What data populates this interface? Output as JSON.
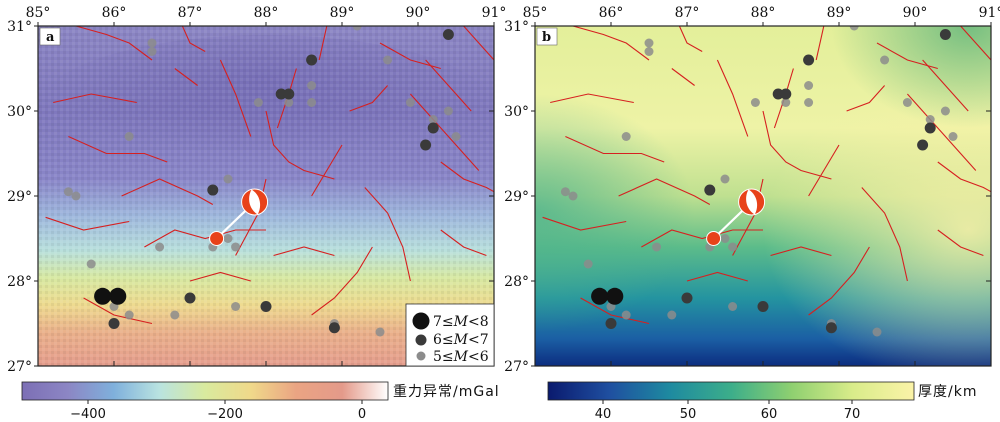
{
  "lon_ticks": [
    "85°",
    "86°",
    "87°",
    "88°",
    "89°",
    "90°",
    "91°"
  ],
  "lat_ticks": [
    "31°",
    "30°",
    "29°",
    "28°",
    "27°"
  ],
  "panel_a": {
    "letter": "a",
    "colorbar_title": "重力异常/mGal",
    "colorbar_ticks": [
      "−400",
      "−200",
      "0"
    ],
    "colormap": [
      "#7c6fb5",
      "#8c86c4",
      "#7fb0dc",
      "#b9e3e0",
      "#d9ea9e",
      "#f0d98a",
      "#eaa483",
      "#e49a8a",
      "#ffffff"
    ]
  },
  "panel_b": {
    "letter": "b",
    "colorbar_title": "厚度/km",
    "colorbar_ticks": [
      "40",
      "50",
      "60",
      "70"
    ],
    "colormap": [
      "#0a1a6e",
      "#1f4fa0",
      "#1e8aa0",
      "#3cae8a",
      "#8fd070",
      "#d9ec8a",
      "#fbf3a8"
    ]
  },
  "legend": {
    "items": [
      {
        "prefix": "7≤",
        "var": "M",
        "suffix": "<8",
        "color": "#111111"
      },
      {
        "prefix": "6≤",
        "var": "M",
        "suffix": "<7",
        "color": "#3a3a3a"
      },
      {
        "prefix": "5≤",
        "var": "M",
        "suffix": "<6",
        "color": "#8c8c8c"
      }
    ]
  },
  "colors": {
    "fault": "#d62020",
    "beachball": "#e8421a",
    "link": "#ffffff"
  },
  "map_extent": {
    "lon": [
      85,
      91
    ],
    "lat": [
      27,
      31
    ]
  },
  "events_large": [
    [
      86.05,
      27.82
    ],
    [
      85.85,
      27.82
    ]
  ],
  "events_medium": [
    [
      87.3,
      29.07
    ],
    [
      88.2,
      30.2
    ],
    [
      88.3,
      30.2
    ],
    [
      88.6,
      30.6
    ],
    [
      90.1,
      29.6
    ],
    [
      90.2,
      29.8
    ],
    [
      90.4,
      30.9
    ],
    [
      87.0,
      27.8
    ],
    [
      88.0,
      27.7
    ],
    [
      88.9,
      27.45
    ],
    [
      86.0,
      27.5
    ]
  ],
  "events_small": [
    [
      85.5,
      29.0
    ],
    [
      85.4,
      29.05
    ],
    [
      85.7,
      28.2
    ],
    [
      86.2,
      29.7
    ],
    [
      86.5,
      30.8
    ],
    [
      86.5,
      30.7
    ],
    [
      87.9,
      30.1
    ],
    [
      88.3,
      30.1
    ],
    [
      88.6,
      30.1
    ],
    [
      88.6,
      30.3
    ],
    [
      87.5,
      29.2
    ],
    [
      87.5,
      28.5
    ],
    [
      87.6,
      28.4
    ],
    [
      87.3,
      28.4
    ],
    [
      86.6,
      28.4
    ],
    [
      87.6,
      27.7
    ],
    [
      88.9,
      27.5
    ],
    [
      86.2,
      27.6
    ],
    [
      86.8,
      27.6
    ],
    [
      89.6,
      30.6
    ],
    [
      89.9,
      30.1
    ],
    [
      90.2,
      29.9
    ],
    [
      90.4,
      30.0
    ],
    [
      90.5,
      29.7
    ],
    [
      89.5,
      27.4
    ],
    [
      86.0,
      27.7
    ],
    [
      89.2,
      31.0
    ]
  ],
  "mechanism_pairs": [
    {
      "event": [
        87.35,
        28.5
      ],
      "ball": [
        87.85,
        28.93
      ]
    }
  ],
  "faults": [
    [
      [
        85.4,
        29.7
      ],
      [
        85.9,
        29.5
      ],
      [
        86.4,
        29.5
      ],
      [
        86.7,
        29.4
      ]
    ],
    [
      [
        86.5,
        30.6
      ],
      [
        86.2,
        30.8
      ],
      [
        85.9,
        30.9
      ],
      [
        85.5,
        31.0
      ]
    ],
    [
      [
        85.1,
        28.75
      ],
      [
        85.6,
        28.6
      ],
      [
        86.2,
        28.7
      ]
    ],
    [
      [
        86.1,
        29.0
      ],
      [
        86.6,
        29.2
      ],
      [
        87.1,
        29.0
      ],
      [
        87.3,
        28.9
      ]
    ],
    [
      [
        86.4,
        28.4
      ],
      [
        86.8,
        28.6
      ],
      [
        87.2,
        28.5
      ],
      [
        87.6,
        28.6
      ],
      [
        88.0,
        28.6
      ]
    ],
    [
      [
        87.6,
        28.3
      ],
      [
        87.75,
        28.55
      ],
      [
        87.9,
        28.8
      ],
      [
        88.0,
        29.2
      ]
    ],
    [
      [
        88.0,
        30.0
      ],
      [
        88.1,
        29.6
      ],
      [
        88.3,
        29.4
      ],
      [
        88.5,
        29.3
      ],
      [
        88.9,
        29.2
      ]
    ],
    [
      [
        88.4,
        30.5
      ],
      [
        88.3,
        30.2
      ],
      [
        88.15,
        29.8
      ]
    ],
    [
      [
        87.4,
        30.6
      ],
      [
        87.6,
        30.2
      ],
      [
        87.8,
        29.7
      ]
    ],
    [
      [
        88.8,
        31.0
      ],
      [
        88.7,
        30.6
      ]
    ],
    [
      [
        89.1,
        30.0
      ],
      [
        89.4,
        30.1
      ],
      [
        89.6,
        30.3
      ]
    ],
    [
      [
        89.9,
        30.2
      ],
      [
        90.2,
        29.9
      ],
      [
        90.5,
        29.6
      ],
      [
        90.8,
        29.3
      ]
    ],
    [
      [
        90.1,
        30.6
      ],
      [
        90.4,
        30.3
      ],
      [
        90.7,
        30.0
      ]
    ],
    [
      [
        90.3,
        29.4
      ],
      [
        90.6,
        29.2
      ],
      [
        90.9,
        29.1
      ],
      [
        91.0,
        29.05
      ]
    ],
    [
      [
        89.3,
        29.1
      ],
      [
        89.6,
        28.8
      ],
      [
        89.8,
        28.4
      ],
      [
        89.9,
        28.0
      ]
    ],
    [
      [
        88.6,
        27.6
      ],
      [
        88.9,
        27.8
      ],
      [
        89.2,
        28.1
      ],
      [
        89.4,
        28.4
      ]
    ],
    [
      [
        85.2,
        30.1
      ],
      [
        85.7,
        30.2
      ],
      [
        86.3,
        30.1
      ]
    ],
    [
      [
        86.8,
        30.5
      ],
      [
        87.1,
        30.3
      ]
    ],
    [
      [
        89.5,
        30.8
      ],
      [
        89.9,
        30.6
      ],
      [
        90.3,
        30.5
      ]
    ],
    [
      [
        85.6,
        27.8
      ],
      [
        86.0,
        27.6
      ],
      [
        86.5,
        27.5
      ]
    ],
    [
      [
        87.0,
        28.0
      ],
      [
        87.4,
        28.1
      ],
      [
        87.8,
        28.0
      ]
    ],
    [
      [
        88.1,
        28.3
      ],
      [
        88.5,
        28.4
      ],
      [
        88.9,
        28.3
      ]
    ],
    [
      [
        90.3,
        28.6
      ],
      [
        90.6,
        28.4
      ],
      [
        90.9,
        28.3
      ]
    ],
    [
      [
        89.0,
        29.6
      ],
      [
        88.8,
        29.3
      ],
      [
        88.6,
        29.0
      ]
    ],
    [
      [
        86.9,
        31.0
      ],
      [
        87.0,
        30.8
      ],
      [
        87.2,
        30.7
      ]
    ],
    [
      [
        90.6,
        31.0
      ],
      [
        90.8,
        30.8
      ],
      [
        91.0,
        30.6
      ]
    ]
  ]
}
